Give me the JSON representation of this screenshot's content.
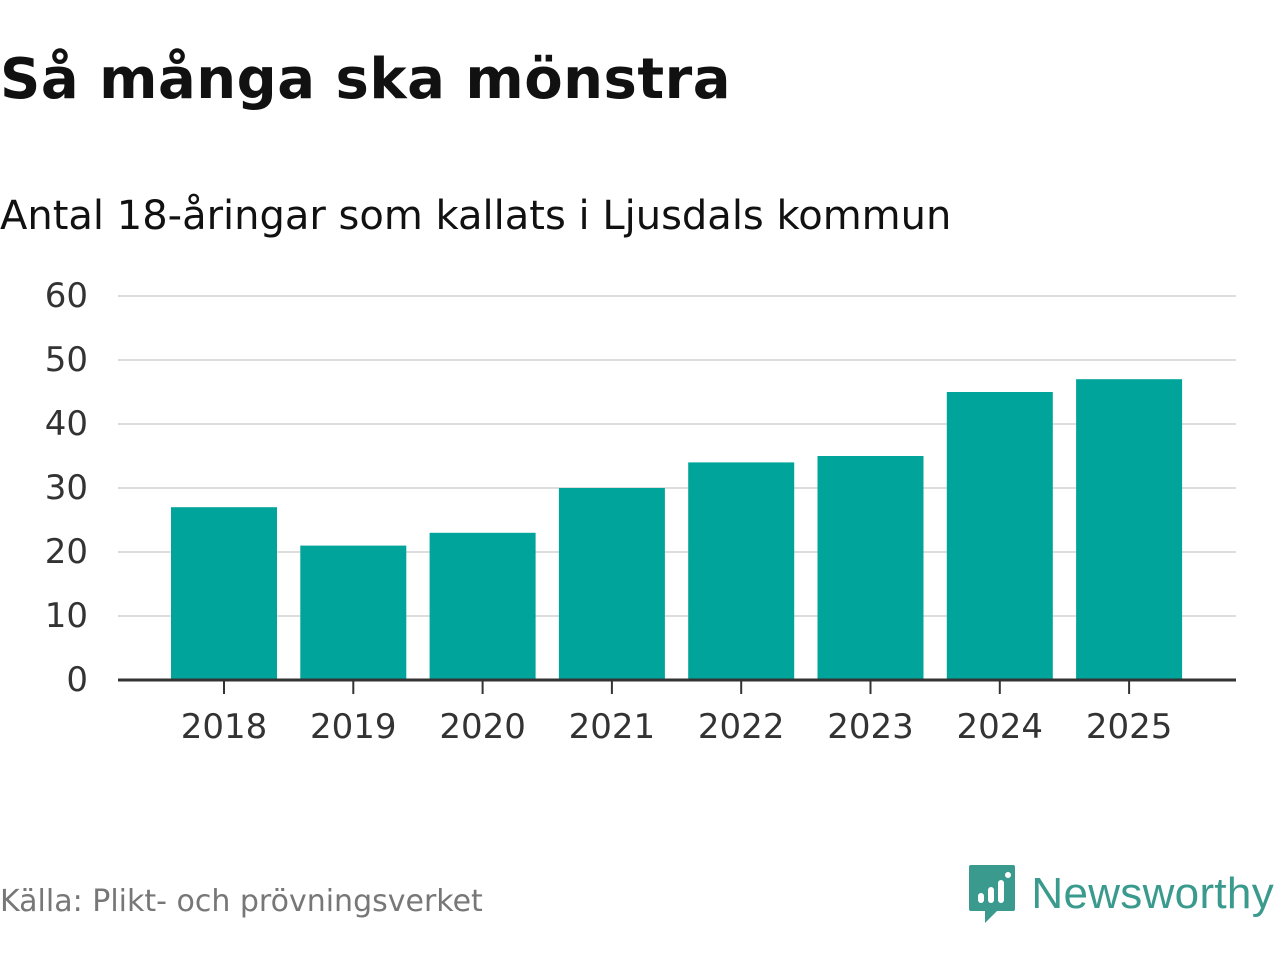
{
  "chart_data": {
    "type": "bar",
    "title": "Så många ska mönstra",
    "subtitle": "Antal 18-åringar som kallats i Ljusdals kommun",
    "categories": [
      "2018",
      "2019",
      "2020",
      "2021",
      "2022",
      "2023",
      "2024",
      "2025"
    ],
    "values": [
      27,
      21,
      23,
      30,
      34,
      35,
      45,
      47
    ],
    "ylim": [
      0,
      60
    ],
    "yticks": [
      0,
      10,
      20,
      30,
      40,
      50,
      60
    ],
    "xlabel": "",
    "ylabel": "",
    "grid": true,
    "bar_color": "#00a49a",
    "grid_color": "#dddddd",
    "axis_color": "#333333"
  },
  "footer": {
    "source": "Källa: Plikt- och prövningsverket",
    "brand": "Newsworthy",
    "brand_color": "#3a9a8d"
  }
}
